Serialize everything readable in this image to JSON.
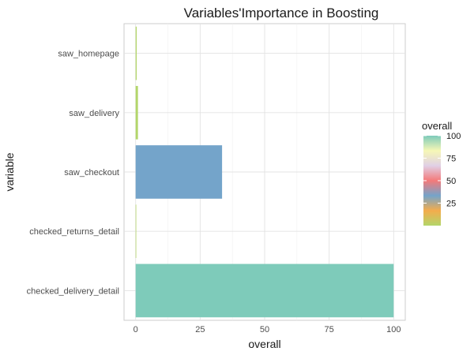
{
  "chart_data": {
    "type": "bar",
    "orientation": "horizontal",
    "title": "Variables'Importance in Boosting",
    "xlabel": "overall",
    "ylabel": "variable",
    "categories": [
      "saw_homepage",
      "saw_delivery",
      "saw_checkout",
      "checked_returns_detail",
      "checked_delivery_detail"
    ],
    "values": [
      0.4,
      0.9,
      33.5,
      0.2,
      100
    ],
    "bar_colors": [
      "#b3d66a",
      "#b3d66a",
      "#74a4ca",
      "#b8d870",
      "#7ecbba"
    ],
    "xlim": [
      -4.5,
      104.5
    ],
    "xticks": [
      0,
      25,
      50,
      75,
      100
    ],
    "grid": true,
    "legend": {
      "title": "overall",
      "position": "right",
      "ticks": [
        25,
        50,
        75,
        100
      ],
      "range": [
        0,
        100
      ],
      "colors": [
        "#b3d66a",
        "#f4ac4c",
        "#74a4ca",
        "#f47a7a",
        "#e0d0e6",
        "#f6f7b6",
        "#7ecbba"
      ]
    }
  }
}
